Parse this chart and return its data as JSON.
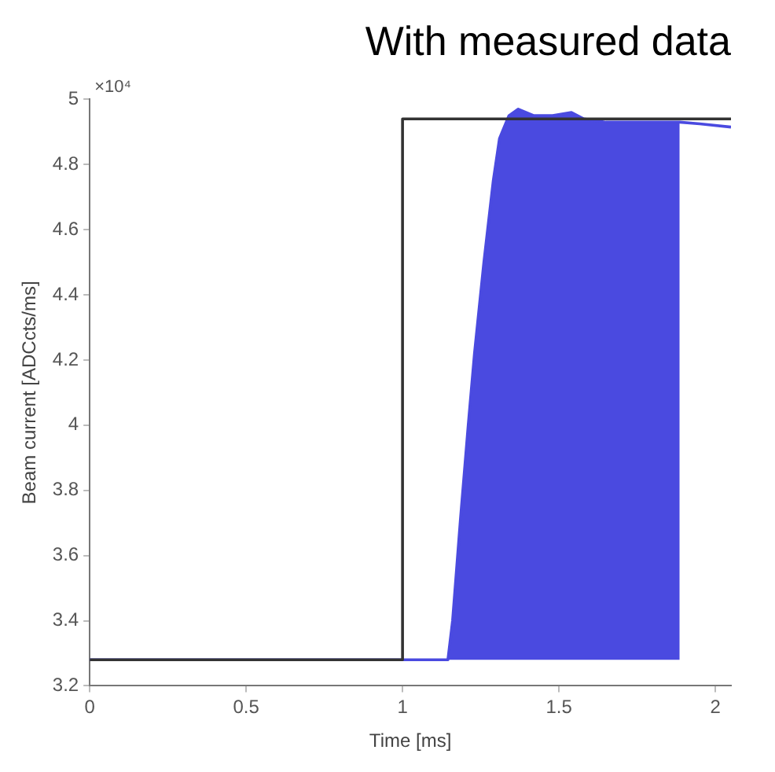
{
  "chart_data": {
    "type": "line",
    "title": "With measured data",
    "xlabel": "Time [ms]",
    "ylabel": "Beam current [ADCcts/ms]",
    "annotations": [
      "×10⁴"
    ],
    "series": [
      {
        "color": "#333333",
        "x": [
          0,
          1,
          1,
          2.05
        ],
        "values": [
          3.28,
          3.28,
          4.94,
          4.94
        ]
      },
      {
        "color": "#4a4ae0",
        "x": [
          0,
          1.145,
          1.16,
          1.185,
          1.21,
          1.23,
          1.26,
          1.29,
          1.31,
          1.34,
          1.37,
          1.42,
          1.48,
          1.54,
          1.58,
          1.65,
          1.75,
          1.886,
          1.95,
          2.05
        ],
        "values": [
          3.28,
          3.28,
          3.4,
          3.71,
          4.0,
          4.22,
          4.5,
          4.75,
          4.88,
          4.95,
          4.97,
          4.95,
          4.95,
          4.96,
          4.94,
          4.93,
          4.93,
          4.93,
          4.925,
          4.915
        ],
        "lower": [
          null,
          3.28,
          3.28,
          3.28,
          3.28,
          3.28,
          3.28,
          3.28,
          3.28,
          3.28,
          3.28,
          3.28,
          3.28,
          3.28,
          3.28,
          3.28,
          3.28,
          3.28,
          null,
          null
        ],
        "upper": [
          null,
          3.28,
          3.4,
          3.71,
          4.0,
          4.22,
          4.5,
          4.75,
          4.88,
          4.95,
          4.97,
          4.95,
          4.95,
          4.96,
          4.94,
          4.93,
          4.93,
          4.93,
          null,
          null
        ]
      }
    ],
    "xlim": [
      0,
      2.05
    ],
    "xticks": [
      0,
      0.5,
      1,
      1.5,
      2
    ],
    "ylim": [
      3.2,
      5
    ],
    "yticks": [
      3.2,
      3.4,
      3.6,
      3.8,
      4,
      4.2,
      4.4,
      4.6,
      4.8,
      5
    ],
    "grid": false,
    "legend": false,
    "marker": "none",
    "line_style": "solid"
  }
}
